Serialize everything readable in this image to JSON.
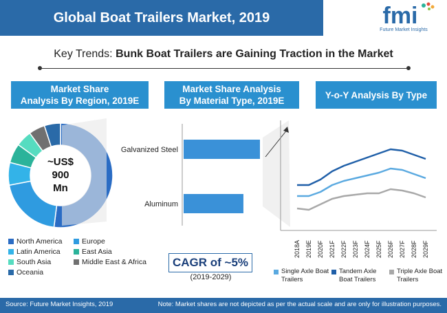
{
  "title": "Global Boat Trailers Market, 2019",
  "logo": {
    "text": "fmi",
    "subtitle": "Future Market Insights"
  },
  "trend": {
    "prefix": "Key Trends: ",
    "highlight": "Bunk Boat Trailers are Gaining Traction in the Market"
  },
  "panels": {
    "region": {
      "header_line1": "Market Share",
      "header_line2": "Analysis By Region, 2019E"
    },
    "material": {
      "header_line1": "Market Share Analysis",
      "header_line2": "By Material Type, 2019E"
    },
    "yoy": {
      "header": "Y-o-Y Analysis By Type"
    }
  },
  "donut_center": {
    "line1": "~US$",
    "line2": "900",
    "line3": "Mn"
  },
  "cagr": {
    "label": "CAGR of ~5%",
    "period": "(2019-2029)"
  },
  "footer": {
    "source": "Source: Future Market Insights, 2019",
    "note": "Note: Market shares are not depicted as per the actual scale and are only for illustration purposes."
  },
  "colors": {
    "title_bg": "#2a6aa8",
    "panel_bg": "#2a90cf",
    "north_america": "#2a6cc4",
    "europe": "#2f9be0",
    "latin_america": "#33b3e8",
    "east_asia": "#2bb39a",
    "south_asia": "#56dcc0",
    "middle_east_africa": "#707070",
    "oceania": "#2a6aa8",
    "single_axle": "#5aa9e0",
    "tandem_axle": "#1f5fa8",
    "triple_axle": "#a8a8a8"
  },
  "chart_data": [
    {
      "type": "pie",
      "title": "Market Share Analysis By Region, 2019E",
      "categories": [
        "North America",
        "Europe",
        "Latin America",
        "East Asia",
        "South Asia",
        "Middle East & Africa",
        "Oceania"
      ],
      "values": [
        52,
        20,
        7,
        6,
        5,
        5,
        5
      ],
      "legend_position": "bottom"
    },
    {
      "type": "bar",
      "orientation": "horizontal",
      "title": "Market Share Analysis By Material Type, 2019E",
      "categories": [
        "Galvanized Steel",
        "Aluminum"
      ],
      "values": [
        60,
        47
      ]
    },
    {
      "type": "line",
      "title": "Y-o-Y Analysis By Type",
      "x": [
        "2018A",
        "2019E",
        "2020F",
        "2021F",
        "2022F",
        "2023F",
        "2024F",
        "2025F",
        "2026F",
        "2027F",
        "2028F",
        "2029F"
      ],
      "series": [
        {
          "name": "Single Axle Boat Trailers",
          "values": [
            4.0,
            4.0,
            4.3,
            4.8,
            5.1,
            5.3,
            5.5,
            5.7,
            6.0,
            5.9,
            5.6,
            5.3
          ]
        },
        {
          "name": "Tandem Axle Boat Trailers",
          "values": [
            4.8,
            4.8,
            5.2,
            5.8,
            6.2,
            6.5,
            6.8,
            7.1,
            7.4,
            7.3,
            7.0,
            6.7
          ]
        },
        {
          "name": "Triple Axle Boat Trailers",
          "values": [
            3.1,
            3.0,
            3.4,
            3.8,
            4.0,
            4.1,
            4.2,
            4.2,
            4.5,
            4.4,
            4.2,
            3.9
          ]
        }
      ],
      "legend_position": "bottom"
    }
  ]
}
